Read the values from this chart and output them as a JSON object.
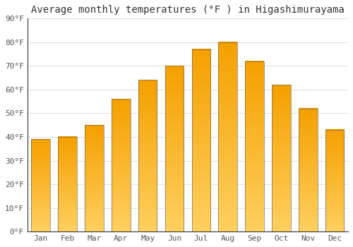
{
  "title": "Average monthly temperatures (°F ) in Higashimurayama",
  "months": [
    "Jan",
    "Feb",
    "Mar",
    "Apr",
    "May",
    "Jun",
    "Jul",
    "Aug",
    "Sep",
    "Oct",
    "Nov",
    "Dec"
  ],
  "values": [
    39,
    40,
    45,
    56,
    64,
    70,
    77,
    80,
    72,
    62,
    52,
    43
  ],
  "bar_color": "#FFA726",
  "ylim": [
    0,
    90
  ],
  "yticks": [
    0,
    10,
    20,
    30,
    40,
    50,
    60,
    70,
    80,
    90
  ],
  "ytick_labels": [
    "0°F",
    "10°F",
    "20°F",
    "30°F",
    "40°F",
    "50°F",
    "60°F",
    "70°F",
    "80°F",
    "90°F"
  ],
  "background_color": "#FFFFFF",
  "grid_color": "#DDDDDD",
  "title_fontsize": 10,
  "tick_fontsize": 8,
  "bar_gradient_top": "#F5A000",
  "bar_gradient_bottom": "#FFD060",
  "spine_color": "#333333"
}
